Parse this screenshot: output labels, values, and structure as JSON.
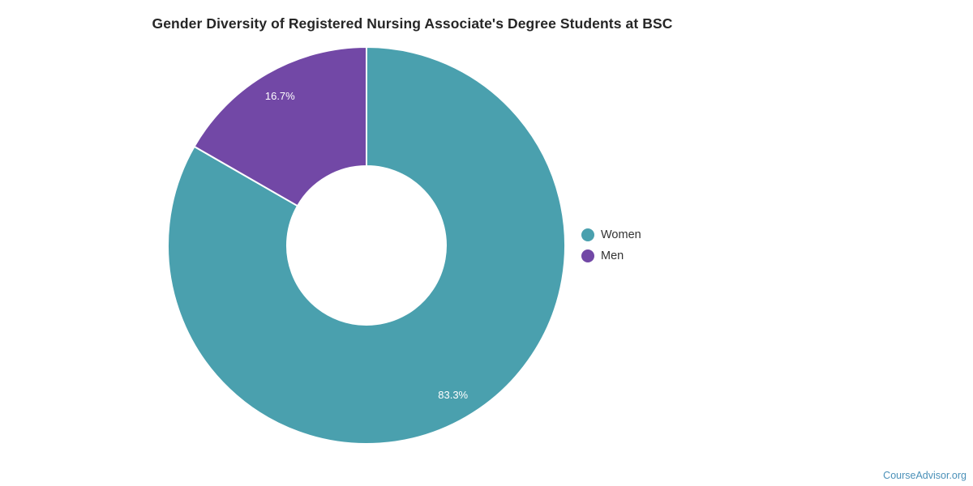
{
  "chart_data": {
    "type": "pie",
    "donut": true,
    "title": "Gender Diversity of Registered Nursing Associate's Degree Students at BSC",
    "categories": [
      "Women",
      "Men"
    ],
    "values": [
      83.3,
      16.7
    ],
    "slice_labels": [
      "83.3%",
      "16.7%"
    ],
    "colors": [
      "#4aa0ae",
      "#7248a6"
    ],
    "slice_label_color": "#ffffff",
    "separator_color": "#ffffff",
    "start_angle": "top",
    "direction": "clockwise",
    "inner_radius_ratio": 0.4,
    "legend_position": "right",
    "legend_entries": [
      "Women",
      "Men"
    ]
  },
  "footer": {
    "brand_label": "CourseAdvisor.org",
    "brand_color": "#4a90b8"
  }
}
